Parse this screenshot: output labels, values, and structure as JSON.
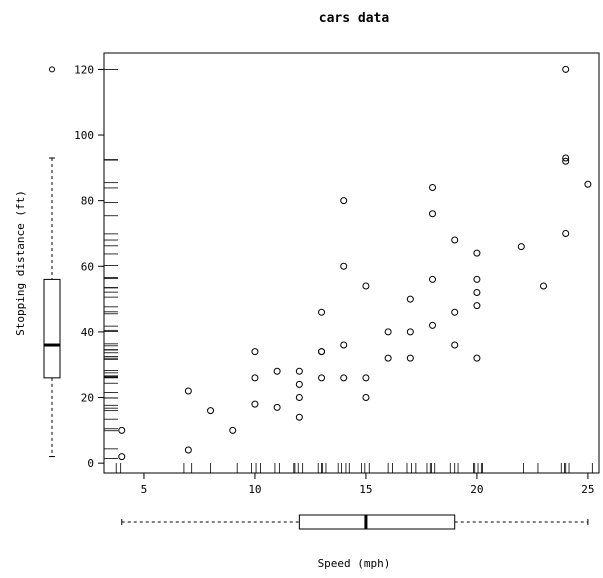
{
  "chart_data": {
    "type": "scatter",
    "title": "cars data",
    "xlabel": "Speed (mph)",
    "ylabel": "Stopping distance (ft)",
    "xlim": [
      3.2,
      25.5
    ],
    "ylim": [
      -3,
      125
    ],
    "xticks": [
      5,
      10,
      15,
      20,
      25
    ],
    "yticks": [
      0,
      20,
      40,
      60,
      80,
      100,
      120
    ],
    "grid": false,
    "marginal": "boxplot + rug on both axes",
    "series": [
      {
        "x": [
          4,
          4,
          7,
          7,
          8,
          9,
          10,
          10,
          10,
          11,
          11,
          12,
          12,
          12,
          12,
          13,
          13,
          13,
          13,
          14,
          14,
          14,
          14,
          15,
          15,
          15,
          16,
          16,
          17,
          17,
          17,
          18,
          18,
          18,
          18,
          19,
          19,
          19,
          20,
          20,
          20,
          20,
          20,
          22,
          23,
          24,
          24,
          24,
          24,
          25
        ],
        "y": [
          2,
          10,
          4,
          22,
          16,
          10,
          18,
          26,
          34,
          17,
          28,
          14,
          20,
          24,
          28,
          26,
          34,
          34,
          46,
          26,
          36,
          60,
          80,
          20,
          26,
          54,
          32,
          40,
          32,
          40,
          50,
          42,
          56,
          76,
          84,
          36,
          46,
          68,
          32,
          48,
          52,
          56,
          64,
          66,
          54,
          70,
          92,
          93,
          120,
          85
        ]
      }
    ],
    "x_boxplot": {
      "min": 4,
      "q1": 12,
      "median": 15,
      "q3": 19,
      "max": 25
    },
    "y_boxplot": {
      "min": 2,
      "q1": 26,
      "median": 36,
      "q3": 56,
      "max": 93,
      "outliers": [
        120
      ]
    }
  }
}
